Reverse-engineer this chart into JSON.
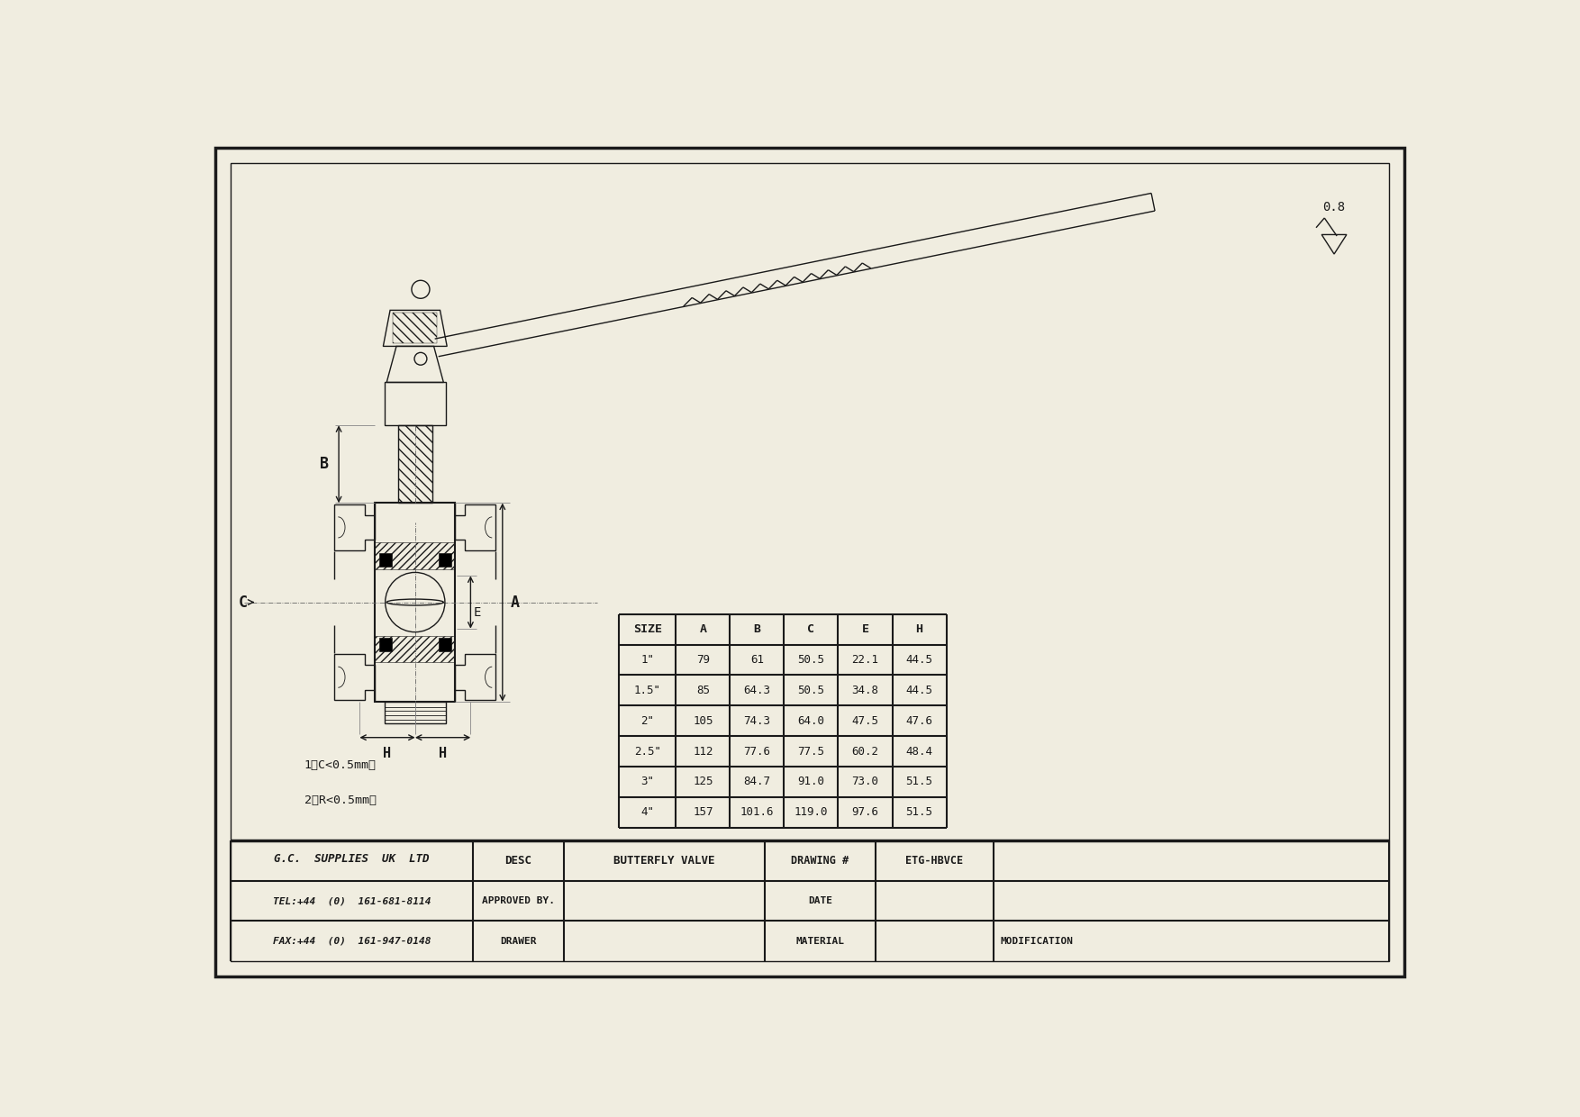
{
  "bg_color": "#f0ede0",
  "line_color": "#1a1a1a",
  "company_name": "G.C.  SUPPLIES  UK  LTD",
  "tel": "TEL:+44  (0)  161-681-8114",
  "fax": "FAX:+44  (0)  161-947-0148",
  "desc_label": "DESC",
  "desc_value": "BUTTERFLY VALVE",
  "drawing_label": "DRAWING #",
  "drawing_value": "ETG-HBVCE",
  "approved_label": "APPROVED BY.",
  "date_label": "DATE",
  "drawer_label": "DRAWER",
  "material_label": "MATERIAL",
  "modification_label": "MODIFICATION",
  "note1": "1、C<0.5mm。",
  "note2": "2、R<0.5mm。",
  "roughness_value": "0.8",
  "table_headers": [
    "SIZE",
    "A",
    "B",
    "C",
    "E",
    "H"
  ],
  "table_data": [
    [
      "1\"",
      "79",
      "61",
      "50.5",
      "22.1",
      "44.5"
    ],
    [
      "1.5\"",
      "85",
      "64.3",
      "50.5",
      "34.8",
      "44.5"
    ],
    [
      "2\"",
      "105",
      "74.3",
      "64.0",
      "47.5",
      "47.6"
    ],
    [
      "2.5\"",
      "112",
      "77.6",
      "77.5",
      "60.2",
      "48.4"
    ],
    [
      "3\"",
      "125",
      "84.7",
      "91.0",
      "73.0",
      "51.5"
    ],
    [
      "4\"",
      "157",
      "101.6",
      "119.0",
      "97.6",
      "51.5"
    ]
  ]
}
